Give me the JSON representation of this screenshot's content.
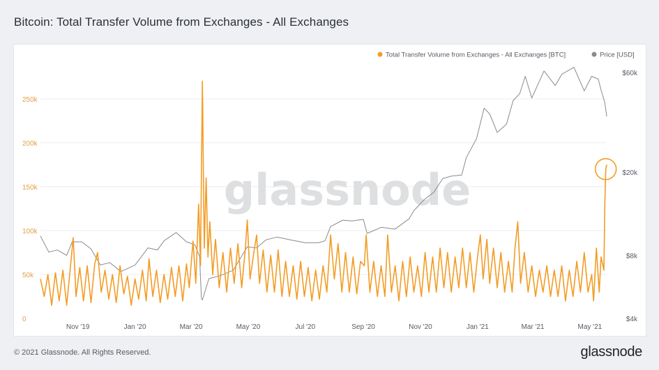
{
  "title": "Bitcoin: Total Transfer Volume from Exchanges - All Exchanges",
  "watermark": "glassnode",
  "footer": {
    "copyright": "© 2021 Glassnode. All Rights Reserved.",
    "brand": "glassnode"
  },
  "colors": {
    "volume": "#f39c24",
    "price": "#8a8a8a",
    "left_axis_text": "#e0a04a",
    "grid": "#eceef1",
    "highlight_circle": "#f39c24"
  },
  "chart_data": {
    "type": "line",
    "title": "Bitcoin: Total Transfer Volume from Exchanges - All Exchanges",
    "legend": {
      "placement": "top-right",
      "entries": [
        {
          "label": "Total Transfer Volume from Exchanges - All Exchanges [BTC]",
          "color": "#f39c24"
        },
        {
          "label": "Price [USD]",
          "color": "#8a8a8a"
        }
      ]
    },
    "x_axis": {
      "ticks": [
        "Nov '19",
        "Jan '20",
        "Mar '20",
        "May '20",
        "Jul '20",
        "Sep '20",
        "Nov '20",
        "Jan '21",
        "Mar '21",
        "May '21"
      ],
      "tick_dates": [
        "2019-11-01",
        "2020-01-01",
        "2020-03-01",
        "2020-05-01",
        "2020-07-01",
        "2020-09-01",
        "2020-11-01",
        "2021-01-01",
        "2021-03-01",
        "2021-05-01"
      ],
      "range": [
        "2019-09-22",
        "2021-05-19"
      ]
    },
    "y_left": {
      "label": "",
      "ticks": [
        "0",
        "50k",
        "100k",
        "150k",
        "200k",
        "250k"
      ],
      "tick_values": [
        0,
        50000,
        100000,
        150000,
        200000,
        250000
      ],
      "range": [
        0,
        280000
      ],
      "scale": "linear"
    },
    "y_right": {
      "label": "",
      "ticks": [
        "$4k",
        "$8k",
        "$20k",
        "$60k"
      ],
      "tick_values": [
        4000,
        8000,
        20000,
        60000
      ],
      "range": [
        4000,
        60000
      ],
      "scale": "log"
    },
    "grid": true,
    "series": [
      {
        "name": "Total Transfer Volume from Exchanges - All Exchanges [BTC]",
        "axis": "left",
        "color": "#f39c24",
        "points": [
          [
            "2019-09-22",
            45000
          ],
          [
            "2019-09-26",
            25000
          ],
          [
            "2019-09-30",
            50000
          ],
          [
            "2019-10-04",
            15000
          ],
          [
            "2019-10-08",
            52000
          ],
          [
            "2019-10-12",
            20000
          ],
          [
            "2019-10-16",
            55000
          ],
          [
            "2019-10-20",
            15000
          ],
          [
            "2019-10-24",
            58000
          ],
          [
            "2019-10-27",
            92000
          ],
          [
            "2019-10-30",
            25000
          ],
          [
            "2019-11-03",
            58000
          ],
          [
            "2019-11-07",
            20000
          ],
          [
            "2019-11-11",
            60000
          ],
          [
            "2019-11-15",
            18000
          ],
          [
            "2019-11-19",
            62000
          ],
          [
            "2019-11-22",
            75000
          ],
          [
            "2019-11-26",
            30000
          ],
          [
            "2019-11-30",
            55000
          ],
          [
            "2019-12-04",
            22000
          ],
          [
            "2019-12-08",
            50000
          ],
          [
            "2019-12-12",
            18000
          ],
          [
            "2019-12-16",
            60000
          ],
          [
            "2019-12-20",
            28000
          ],
          [
            "2019-12-24",
            48000
          ],
          [
            "2019-12-28",
            15000
          ],
          [
            "2020-01-01",
            45000
          ],
          [
            "2020-01-05",
            22000
          ],
          [
            "2020-01-09",
            55000
          ],
          [
            "2020-01-13",
            20000
          ],
          [
            "2020-01-16",
            68000
          ],
          [
            "2020-01-20",
            25000
          ],
          [
            "2020-01-24",
            55000
          ],
          [
            "2020-01-28",
            18000
          ],
          [
            "2020-02-01",
            50000
          ],
          [
            "2020-02-05",
            22000
          ],
          [
            "2020-02-09",
            58000
          ],
          [
            "2020-02-13",
            25000
          ],
          [
            "2020-02-17",
            60000
          ],
          [
            "2020-02-21",
            20000
          ],
          [
            "2020-02-25",
            62000
          ],
          [
            "2020-02-28",
            35000
          ],
          [
            "2020-03-03",
            88000
          ],
          [
            "2020-03-06",
            40000
          ],
          [
            "2020-03-09",
            130000
          ],
          [
            "2020-03-11",
            60000
          ],
          [
            "2020-03-13",
            270000
          ],
          [
            "2020-03-15",
            80000
          ],
          [
            "2020-03-17",
            160000
          ],
          [
            "2020-03-19",
            70000
          ],
          [
            "2020-03-21",
            110000
          ],
          [
            "2020-03-24",
            50000
          ],
          [
            "2020-03-27",
            90000
          ],
          [
            "2020-03-31",
            35000
          ],
          [
            "2020-04-04",
            75000
          ],
          [
            "2020-04-08",
            30000
          ],
          [
            "2020-04-12",
            80000
          ],
          [
            "2020-04-16",
            40000
          ],
          [
            "2020-04-20",
            85000
          ],
          [
            "2020-04-24",
            35000
          ],
          [
            "2020-04-28",
            80000
          ],
          [
            "2020-04-30",
            112000
          ],
          [
            "2020-05-03",
            45000
          ],
          [
            "2020-05-07",
            75000
          ],
          [
            "2020-05-10",
            95000
          ],
          [
            "2020-05-13",
            40000
          ],
          [
            "2020-05-17",
            78000
          ],
          [
            "2020-05-21",
            30000
          ],
          [
            "2020-05-25",
            72000
          ],
          [
            "2020-05-29",
            30000
          ],
          [
            "2020-06-02",
            78000
          ],
          [
            "2020-06-06",
            25000
          ],
          [
            "2020-06-10",
            65000
          ],
          [
            "2020-06-14",
            25000
          ],
          [
            "2020-06-18",
            60000
          ],
          [
            "2020-06-22",
            22000
          ],
          [
            "2020-06-26",
            65000
          ],
          [
            "2020-06-30",
            25000
          ],
          [
            "2020-07-04",
            58000
          ],
          [
            "2020-07-08",
            20000
          ],
          [
            "2020-07-12",
            55000
          ],
          [
            "2020-07-16",
            22000
          ],
          [
            "2020-07-20",
            60000
          ],
          [
            "2020-07-24",
            30000
          ],
          [
            "2020-07-28",
            95000
          ],
          [
            "2020-08-01",
            45000
          ],
          [
            "2020-08-05",
            85000
          ],
          [
            "2020-08-09",
            30000
          ],
          [
            "2020-08-13",
            75000
          ],
          [
            "2020-08-17",
            30000
          ],
          [
            "2020-08-21",
            70000
          ],
          [
            "2020-08-25",
            28000
          ],
          [
            "2020-08-29",
            65000
          ],
          [
            "2020-09-02",
            60000
          ],
          [
            "2020-09-04",
            95000
          ],
          [
            "2020-09-08",
            30000
          ],
          [
            "2020-09-12",
            65000
          ],
          [
            "2020-09-16",
            25000
          ],
          [
            "2020-09-20",
            60000
          ],
          [
            "2020-09-24",
            25000
          ],
          [
            "2020-09-27",
            95000
          ],
          [
            "2020-10-01",
            30000
          ],
          [
            "2020-10-05",
            60000
          ],
          [
            "2020-10-09",
            20000
          ],
          [
            "2020-10-13",
            65000
          ],
          [
            "2020-10-17",
            25000
          ],
          [
            "2020-10-21",
            70000
          ],
          [
            "2020-10-25",
            30000
          ],
          [
            "2020-10-29",
            60000
          ],
          [
            "2020-11-02",
            25000
          ],
          [
            "2020-11-06",
            75000
          ],
          [
            "2020-11-10",
            30000
          ],
          [
            "2020-11-14",
            70000
          ],
          [
            "2020-11-18",
            30000
          ],
          [
            "2020-11-22",
            80000
          ],
          [
            "2020-11-26",
            35000
          ],
          [
            "2020-11-30",
            75000
          ],
          [
            "2020-12-04",
            30000
          ],
          [
            "2020-12-08",
            70000
          ],
          [
            "2020-12-12",
            35000
          ],
          [
            "2020-12-16",
            80000
          ],
          [
            "2020-12-20",
            35000
          ],
          [
            "2020-12-24",
            75000
          ],
          [
            "2020-12-28",
            30000
          ],
          [
            "2021-01-01",
            70000
          ],
          [
            "2021-01-04",
            95000
          ],
          [
            "2021-01-07",
            45000
          ],
          [
            "2021-01-11",
            90000
          ],
          [
            "2021-01-14",
            40000
          ],
          [
            "2021-01-18",
            80000
          ],
          [
            "2021-01-22",
            35000
          ],
          [
            "2021-01-26",
            75000
          ],
          [
            "2021-01-30",
            30000
          ],
          [
            "2021-02-03",
            65000
          ],
          [
            "2021-02-07",
            30000
          ],
          [
            "2021-02-10",
            80000
          ],
          [
            "2021-02-13",
            110000
          ],
          [
            "2021-02-16",
            40000
          ],
          [
            "2021-02-20",
            75000
          ],
          [
            "2021-02-24",
            30000
          ],
          [
            "2021-02-28",
            60000
          ],
          [
            "2021-03-04",
            25000
          ],
          [
            "2021-03-08",
            55000
          ],
          [
            "2021-03-12",
            30000
          ],
          [
            "2021-03-16",
            60000
          ],
          [
            "2021-03-20",
            25000
          ],
          [
            "2021-03-24",
            55000
          ],
          [
            "2021-03-28",
            25000
          ],
          [
            "2021-04-01",
            60000
          ],
          [
            "2021-04-05",
            20000
          ],
          [
            "2021-04-09",
            55000
          ],
          [
            "2021-04-13",
            25000
          ],
          [
            "2021-04-17",
            65000
          ],
          [
            "2021-04-21",
            30000
          ],
          [
            "2021-04-25",
            75000
          ],
          [
            "2021-04-29",
            30000
          ],
          [
            "2021-05-03",
            50000
          ],
          [
            "2021-05-05",
            20000
          ],
          [
            "2021-05-08",
            80000
          ],
          [
            "2021-05-11",
            30000
          ],
          [
            "2021-05-13",
            70000
          ],
          [
            "2021-05-16",
            55000
          ],
          [
            "2021-05-17",
            130000
          ],
          [
            "2021-05-18",
            170000
          ],
          [
            "2021-05-19",
            175000
          ]
        ]
      },
      {
        "name": "Price [USD]",
        "axis": "right",
        "color": "#8a8a8a",
        "points": [
          [
            "2019-09-22",
            9900
          ],
          [
            "2019-10-01",
            8300
          ],
          [
            "2019-10-10",
            8500
          ],
          [
            "2019-10-20",
            8000
          ],
          [
            "2019-10-26",
            9300
          ],
          [
            "2019-11-05",
            9300
          ],
          [
            "2019-11-15",
            8600
          ],
          [
            "2019-11-25",
            7200
          ],
          [
            "2019-12-05",
            7400
          ],
          [
            "2019-12-17",
            6700
          ],
          [
            "2020-01-01",
            7200
          ],
          [
            "2020-01-15",
            8700
          ],
          [
            "2020-01-25",
            8500
          ],
          [
            "2020-02-01",
            9400
          ],
          [
            "2020-02-14",
            10300
          ],
          [
            "2020-02-25",
            9300
          ],
          [
            "2020-03-05",
            9000
          ],
          [
            "2020-03-10",
            7900
          ],
          [
            "2020-03-12",
            5000
          ],
          [
            "2020-03-13",
            4900
          ],
          [
            "2020-03-20",
            6200
          ],
          [
            "2020-04-01",
            6400
          ],
          [
            "2020-04-15",
            6800
          ],
          [
            "2020-04-30",
            8800
          ],
          [
            "2020-05-10",
            8700
          ],
          [
            "2020-05-20",
            9500
          ],
          [
            "2020-06-01",
            9800
          ],
          [
            "2020-06-15",
            9500
          ],
          [
            "2020-07-01",
            9200
          ],
          [
            "2020-07-15",
            9200
          ],
          [
            "2020-07-22",
            9400
          ],
          [
            "2020-07-28",
            11000
          ],
          [
            "2020-08-10",
            11800
          ],
          [
            "2020-08-20",
            11700
          ],
          [
            "2020-09-01",
            11900
          ],
          [
            "2020-09-05",
            10200
          ],
          [
            "2020-09-20",
            10900
          ],
          [
            "2020-10-05",
            10700
          ],
          [
            "2020-10-20",
            12000
          ],
          [
            "2020-10-25",
            13100
          ],
          [
            "2020-11-05",
            14800
          ],
          [
            "2020-11-15",
            16000
          ],
          [
            "2020-11-25",
            18700
          ],
          [
            "2020-12-05",
            19200
          ],
          [
            "2020-12-15",
            19400
          ],
          [
            "2020-12-20",
            23500
          ],
          [
            "2020-12-31",
            29000
          ],
          [
            "2021-01-08",
            40500
          ],
          [
            "2021-01-14",
            38000
          ],
          [
            "2021-01-22",
            31000
          ],
          [
            "2021-02-01",
            34000
          ],
          [
            "2021-02-08",
            44000
          ],
          [
            "2021-02-15",
            47500
          ],
          [
            "2021-02-21",
            57500
          ],
          [
            "2021-02-28",
            45300
          ],
          [
            "2021-03-13",
            61000
          ],
          [
            "2021-03-25",
            52000
          ],
          [
            "2021-04-01",
            58800
          ],
          [
            "2021-04-14",
            63500
          ],
          [
            "2021-04-25",
            49000
          ],
          [
            "2021-05-03",
            57500
          ],
          [
            "2021-05-10",
            55800
          ],
          [
            "2021-05-13",
            49500
          ],
          [
            "2021-05-17",
            43000
          ],
          [
            "2021-05-19",
            37000
          ]
        ]
      }
    ],
    "annotations": [
      {
        "type": "circle",
        "date": "2021-05-18",
        "value": 170000,
        "axis": "left",
        "color": "#f39c24"
      }
    ]
  }
}
